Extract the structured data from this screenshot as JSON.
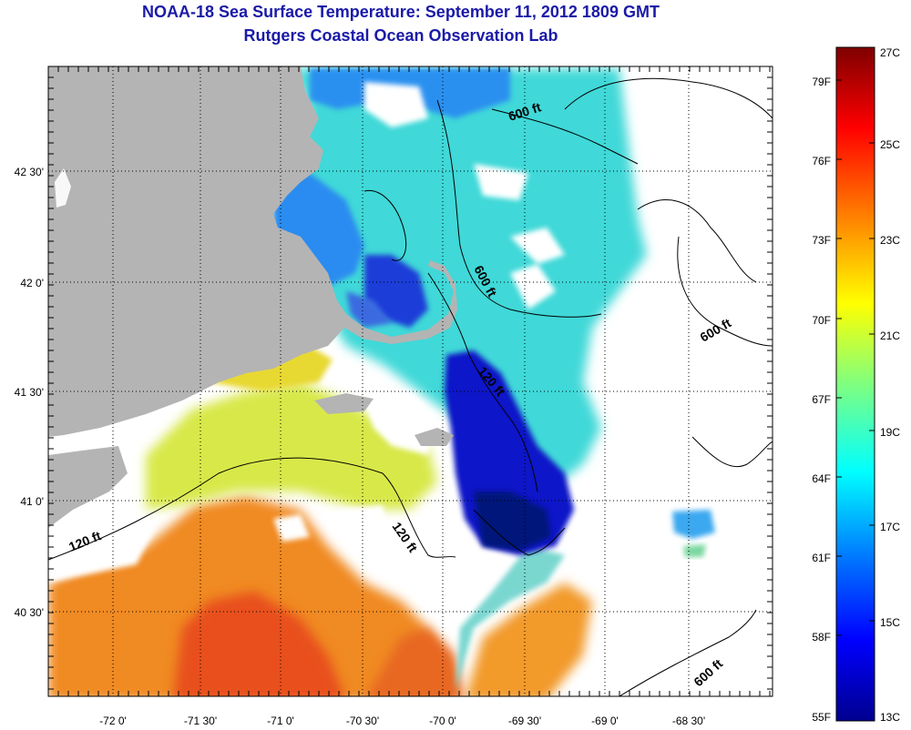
{
  "title": {
    "line1": "NOAA-18 Sea Surface Temperature:  September 11, 2012 1809 GMT",
    "line2": "Rutgers Coastal Ocean Observation Lab"
  },
  "axes": {
    "longitude_labels": [
      "-72 0'",
      "-71 30'",
      "-71 0'",
      "-70 30'",
      "-70 0'",
      "-69 30'",
      "-69 0'",
      "-68 30'"
    ],
    "latitude_labels": [
      "42 30'",
      "42 0'",
      "41 30'",
      "41 0'",
      "40 30'"
    ]
  },
  "contour_labels": [
    "600 ft",
    "600 ft",
    "600 ft",
    "600 ft",
    "120 ft",
    "120 ft",
    "120 ft"
  ],
  "colorbar": {
    "fahrenheit_labels": [
      "79F",
      "76F",
      "73F",
      "70F",
      "67F",
      "64F",
      "61F",
      "58F",
      "55F"
    ],
    "celsius_labels": [
      "27C",
      "25C",
      "23C",
      "21C",
      "19C",
      "17C",
      "15C",
      "13C"
    ],
    "min_c": 13,
    "max_c": 27,
    "colors": [
      "#00008f",
      "#0000ff",
      "#007fff",
      "#00ffff",
      "#7fff7f",
      "#ffff00",
      "#ff7f00",
      "#ff0000",
      "#7f0000"
    ]
  },
  "colors": {
    "land": "#b4b4b4",
    "title": "#1a1aa8",
    "no_data": "#ffffff"
  }
}
